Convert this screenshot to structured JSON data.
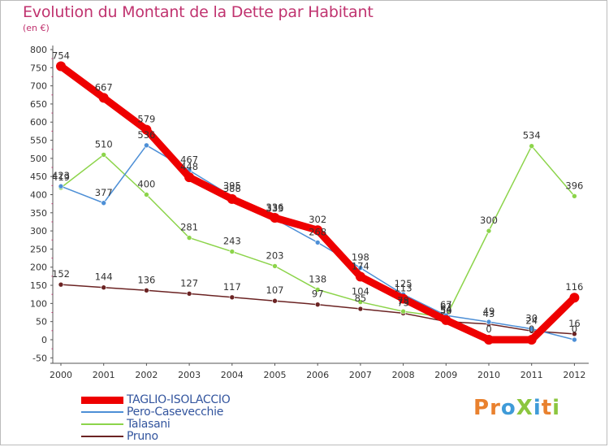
{
  "chart_data": {
    "type": "line",
    "title": "Evolution du Montant de la Dette par Habitant",
    "subtitle": "(en €)",
    "x": [
      "2000",
      "2001",
      "2002",
      "2003",
      "2004",
      "2005",
      "2006",
      "2007",
      "2008",
      "2009",
      "2010",
      "2011",
      "2012"
    ],
    "yticks": [
      800,
      750,
      700,
      650,
      600,
      550,
      500,
      450,
      400,
      350,
      300,
      250,
      200,
      150,
      100,
      50,
      0,
      -50
    ],
    "ylim": [
      -50,
      800
    ],
    "grid": false,
    "legend_position": "bottom-left",
    "series": [
      {
        "name": "TAGLIO-ISOLACCIO",
        "color": "#ee0000",
        "values": [
          754,
          667,
          579,
          448,
          388,
          336,
          302,
          174,
          113,
          54,
          0,
          0,
          116
        ],
        "labels": [
          "754",
          "667",
          "579",
          "448",
          "388",
          "336",
          "302",
          "174",
          "113",
          "54",
          "0",
          "0",
          "116"
        ]
      },
      {
        "name": "Pero-Casevecchie",
        "color": "#4d8fd6",
        "values": [
          423,
          377,
          536,
          467,
          395,
          333,
          268,
          198,
          125,
          67,
          49,
          30,
          0
        ],
        "labels": [
          "423",
          "377",
          "536",
          "467",
          "395",
          "333",
          "268",
          "198",
          "125",
          "67",
          "49",
          "30",
          "0"
        ]
      },
      {
        "name": "Talasani",
        "color": "#8cd44a",
        "values": [
          419,
          510,
          400,
          281,
          243,
          203,
          138,
          104,
          78,
          62,
          300,
          534,
          396
        ],
        "labels": [
          "419",
          "510",
          "400",
          "281",
          "243",
          "203",
          "138",
          "104",
          "78",
          "62",
          "300",
          "534",
          "396"
        ]
      },
      {
        "name": "Pruno",
        "color": "#6b2323",
        "values": [
          152,
          144,
          136,
          127,
          117,
          107,
          97,
          85,
          73,
          50,
          43,
          24,
          16
        ],
        "labels": [
          "152",
          "144",
          "136",
          "127",
          "117",
          "107",
          "97",
          "85",
          "73",
          "50",
          "43",
          "24",
          "16"
        ]
      }
    ]
  },
  "logo": {
    "text": "ProXiti",
    "letters": [
      {
        "ch": "P",
        "color": "#e9812e"
      },
      {
        "ch": "r",
        "color": "#e9812e"
      },
      {
        "ch": "o",
        "color": "#3f9bd8"
      },
      {
        "ch": "X",
        "color": "#8cc63f"
      },
      {
        "ch": "i",
        "color": "#3f9bd8"
      },
      {
        "ch": "t",
        "color": "#e9812e"
      },
      {
        "ch": "i",
        "color": "#8cc63f"
      }
    ]
  }
}
